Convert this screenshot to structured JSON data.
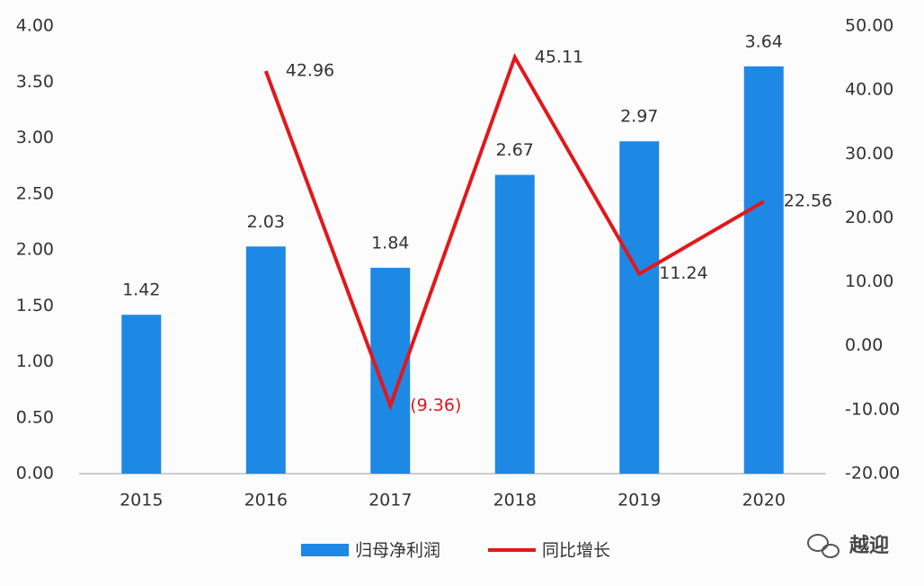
{
  "chart_data": {
    "type": "bar-line",
    "categories": [
      "2015",
      "2016",
      "2017",
      "2018",
      "2019",
      "2020"
    ],
    "series": [
      {
        "name": "归母净利润",
        "type": "bar",
        "color": "#1e88e5",
        "values": [
          1.42,
          2.03,
          1.84,
          2.67,
          2.97,
          3.64
        ]
      },
      {
        "name": "同比增长",
        "type": "line",
        "axis": "y2",
        "color": "#e3171c",
        "values": [
          null,
          42.96,
          -9.36,
          45.11,
          11.24,
          22.56
        ],
        "value_labels": [
          null,
          "42.96",
          "(9.36)",
          "45.11",
          "11.24",
          "22.56"
        ]
      }
    ],
    "ylim": [
      0,
      4
    ],
    "yticks": [
      {
        "value": 0,
        "label": "0.00"
      },
      {
        "value": 0.5,
        "label": "0.50"
      },
      {
        "value": 1,
        "label": "1.00"
      },
      {
        "value": 1.5,
        "label": "1.50"
      },
      {
        "value": 2,
        "label": "2.00"
      },
      {
        "value": 2.5,
        "label": "2.50"
      },
      {
        "value": 3,
        "label": "3.00"
      },
      {
        "value": 3.5,
        "label": "3.50"
      },
      {
        "value": 4,
        "label": "4.00"
      }
    ],
    "y2lim": [
      -20,
      50
    ],
    "y2ticks": [
      {
        "value": -20,
        "label": "-20.00"
      },
      {
        "value": -10,
        "label": "-10.00"
      },
      {
        "value": 0,
        "label": "0.00"
      },
      {
        "value": 10,
        "label": "10.00"
      },
      {
        "value": 20,
        "label": "20.00"
      },
      {
        "value": 30,
        "label": "30.00"
      },
      {
        "value": 40,
        "label": "40.00"
      },
      {
        "value": 50,
        "label": "50.00"
      }
    ],
    "grid": false,
    "legend": "bottom",
    "watermark": "越迎"
  }
}
